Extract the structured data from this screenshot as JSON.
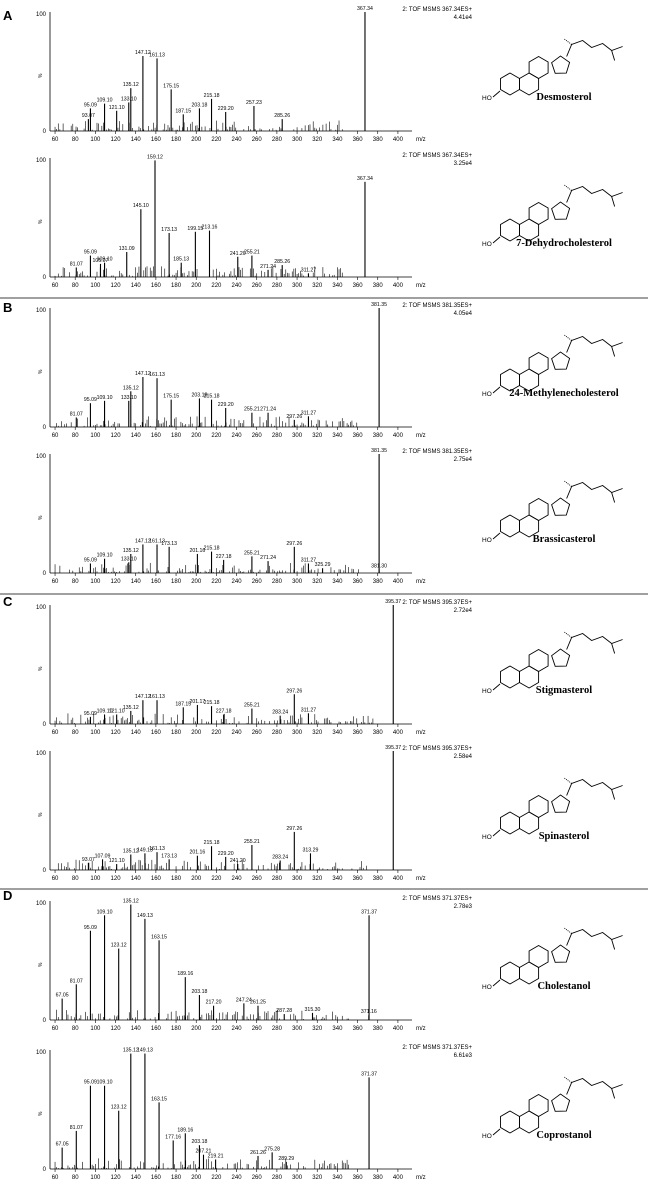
{
  "colors": {
    "ink": "#000000",
    "background": "#ffffff"
  },
  "panels": [
    {
      "letter": "A"
    },
    {
      "letter": "B"
    },
    {
      "letter": "C"
    },
    {
      "letter": "D"
    }
  ],
  "chart_data": [
    {
      "type": "bar",
      "panel": "A",
      "compound": "Desmosterol",
      "header": "2: TOF MSMS 367.34ES+",
      "intensity": "4.41e4",
      "xlabel": "m/z",
      "ylabel": "%",
      "xlim": [
        55,
        410
      ],
      "ylim": [
        0,
        100
      ],
      "xticks": [
        60,
        80,
        100,
        120,
        140,
        160,
        180,
        200,
        220,
        240,
        260,
        280,
        300,
        320,
        340,
        360,
        380,
        400
      ],
      "yticks": [
        0,
        100
      ],
      "peaks": [
        {
          "mz": 93.07,
          "rel": 10,
          "label": "93.07"
        },
        {
          "mz": 95.09,
          "rel": 19,
          "label": "95.09"
        },
        {
          "mz": 109.1,
          "rel": 23,
          "label": "109.10"
        },
        {
          "mz": 121.1,
          "rel": 17,
          "label": "121.10"
        },
        {
          "mz": 133.1,
          "rel": 24,
          "label": "133.10"
        },
        {
          "mz": 135.12,
          "rel": 36,
          "label": "135.12"
        },
        {
          "mz": 147.12,
          "rel": 63,
          "label": "147.12"
        },
        {
          "mz": 161.13,
          "rel": 61,
          "label": "161.13"
        },
        {
          "mz": 175.15,
          "rel": 35,
          "label": "175.15"
        },
        {
          "mz": 187.15,
          "rel": 14,
          "label": "187.15"
        },
        {
          "mz": 203.18,
          "rel": 19,
          "label": "203.18"
        },
        {
          "mz": 215.18,
          "rel": 27,
          "label": "215.18"
        },
        {
          "mz": 229.2,
          "rel": 16,
          "label": "229.20"
        },
        {
          "mz": 257.23,
          "rel": 21,
          "label": "257.23"
        },
        {
          "mz": 285.26,
          "rel": 10,
          "label": "285.26"
        },
        {
          "mz": 367.34,
          "rel": 100,
          "label": "367.34"
        }
      ]
    },
    {
      "type": "bar",
      "panel": "A",
      "compound": "7-Dehydrocholesterol",
      "header": "2: TOF MSMS 367.34ES+",
      "intensity": "3.25e4",
      "xlabel": "m/z",
      "ylabel": "%",
      "xlim": [
        55,
        410
      ],
      "ylim": [
        0,
        100
      ],
      "xticks": [
        60,
        80,
        100,
        120,
        140,
        160,
        180,
        200,
        220,
        240,
        260,
        280,
        300,
        320,
        340,
        360,
        380,
        400
      ],
      "yticks": [
        0,
        100
      ],
      "peaks": [
        {
          "mz": 81.07,
          "rel": 8,
          "label": "81.07"
        },
        {
          "mz": 95.09,
          "rel": 18,
          "label": "95.09"
        },
        {
          "mz": 105.07,
          "rel": 11,
          "label": "105.07"
        },
        {
          "mz": 109.1,
          "rel": 12,
          "label": "109.10"
        },
        {
          "mz": 131.09,
          "rel": 21,
          "label": "131.09"
        },
        {
          "mz": 145.1,
          "rel": 57,
          "label": "145.10"
        },
        {
          "mz": 159.12,
          "rel": 98,
          "label": "159.12"
        },
        {
          "mz": 173.13,
          "rel": 37,
          "label": "173.13"
        },
        {
          "mz": 185.13,
          "rel": 12,
          "label": "185.13"
        },
        {
          "mz": 199.15,
          "rel": 38,
          "label": "199.15"
        },
        {
          "mz": 213.16,
          "rel": 39,
          "label": "213.16"
        },
        {
          "mz": 241.2,
          "rel": 17,
          "label": "241.20"
        },
        {
          "mz": 255.21,
          "rel": 18,
          "label": "255.21"
        },
        {
          "mz": 271.24,
          "rel": 6,
          "label": "271.24"
        },
        {
          "mz": 285.26,
          "rel": 10,
          "label": "285.26"
        },
        {
          "mz": 311.27,
          "rel": 3,
          "label": "311.27"
        },
        {
          "mz": 367.34,
          "rel": 80,
          "label": "367.34"
        }
      ]
    },
    {
      "type": "bar",
      "panel": "B",
      "compound": "24-Methylenecholesterol",
      "header": "2: TOF MSMS 381.35ES+",
      "intensity": "4.05e4",
      "xlabel": "m/z",
      "ylabel": "%",
      "xlim": [
        55,
        410
      ],
      "ylim": [
        0,
        100
      ],
      "xticks": [
        60,
        80,
        100,
        120,
        140,
        160,
        180,
        200,
        220,
        240,
        260,
        280,
        300,
        320,
        340,
        360,
        380,
        400
      ],
      "yticks": [
        0,
        100
      ],
      "peaks": [
        {
          "mz": 81.07,
          "rel": 8,
          "label": "81.07"
        },
        {
          "mz": 95.09,
          "rel": 20,
          "label": "95.09"
        },
        {
          "mz": 109.1,
          "rel": 22,
          "label": "109.10"
        },
        {
          "mz": 133.1,
          "rel": 22,
          "label": "133.10"
        },
        {
          "mz": 135.12,
          "rel": 30,
          "label": "135.12"
        },
        {
          "mz": 147.12,
          "rel": 42,
          "label": "147.12"
        },
        {
          "mz": 161.13,
          "rel": 41,
          "label": "161.13"
        },
        {
          "mz": 175.15,
          "rel": 23,
          "label": "175.15"
        },
        {
          "mz": 203.18,
          "rel": 24,
          "label": "203.18"
        },
        {
          "mz": 215.18,
          "rel": 23,
          "label": "215.18"
        },
        {
          "mz": 229.2,
          "rel": 16,
          "label": "229.20"
        },
        {
          "mz": 255.21,
          "rel": 12,
          "label": "255.21"
        },
        {
          "mz": 271.24,
          "rel": 12,
          "label": "271.24"
        },
        {
          "mz": 297.26,
          "rel": 6,
          "label": "297.26"
        },
        {
          "mz": 311.27,
          "rel": 9,
          "label": "311.27"
        },
        {
          "mz": 381.35,
          "rel": 100,
          "label": "381.35"
        }
      ]
    },
    {
      "type": "bar",
      "panel": "B",
      "compound": "Brassicasterol",
      "header": "2: TOF MSMS 381.35ES+",
      "intensity": "2.75e4",
      "xlabel": "m/z",
      "ylabel": "%",
      "xlim": [
        55,
        410
      ],
      "ylim": [
        0,
        100
      ],
      "xticks": [
        60,
        80,
        100,
        120,
        140,
        160,
        180,
        200,
        220,
        240,
        260,
        280,
        300,
        320,
        340,
        360,
        380,
        400
      ],
      "yticks": [
        0,
        100
      ],
      "peaks": [
        {
          "mz": 95.09,
          "rel": 8,
          "label": "95.09"
        },
        {
          "mz": 109.1,
          "rel": 12,
          "label": "109.10"
        },
        {
          "mz": 133.1,
          "rel": 9,
          "label": "133.10"
        },
        {
          "mz": 135.12,
          "rel": 16,
          "label": "135.12"
        },
        {
          "mz": 147.12,
          "rel": 24,
          "label": "147.12"
        },
        {
          "mz": 161.13,
          "rel": 24,
          "label": "161.13"
        },
        {
          "mz": 173.13,
          "rel": 22,
          "label": "173.13"
        },
        {
          "mz": 201.16,
          "rel": 16,
          "label": "201.16"
        },
        {
          "mz": 215.18,
          "rel": 18,
          "label": "215.18"
        },
        {
          "mz": 227.18,
          "rel": 11,
          "label": "227.18"
        },
        {
          "mz": 255.21,
          "rel": 14,
          "label": "255.21"
        },
        {
          "mz": 271.24,
          "rel": 10,
          "label": "271.24"
        },
        {
          "mz": 297.26,
          "rel": 22,
          "label": "297.26"
        },
        {
          "mz": 311.27,
          "rel": 8,
          "label": "311.27"
        },
        {
          "mz": 325.29,
          "rel": 4,
          "label": "325.29"
        },
        {
          "mz": 381.3,
          "rel": 3,
          "label": "381.30"
        },
        {
          "mz": 381.35,
          "rel": 100,
          "label": "381.35"
        }
      ]
    },
    {
      "type": "bar",
      "panel": "C",
      "compound": "Stigmasterol",
      "header": "2: TOF MSMS 395.37ES+",
      "intensity": "2.72e4",
      "xlabel": "m/z",
      "ylabel": "%",
      "xlim": [
        55,
        410
      ],
      "ylim": [
        0,
        100
      ],
      "xticks": [
        60,
        80,
        100,
        120,
        140,
        160,
        180,
        200,
        220,
        240,
        260,
        280,
        300,
        320,
        340,
        360,
        380,
        400
      ],
      "yticks": [
        0,
        100
      ],
      "peaks": [
        {
          "mz": 95.09,
          "rel": 6,
          "label": "95.09"
        },
        {
          "mz": 109.1,
          "rel": 8,
          "label": "109.10"
        },
        {
          "mz": 121.1,
          "rel": 8,
          "label": "121.10"
        },
        {
          "mz": 135.12,
          "rel": 11,
          "label": "135.12"
        },
        {
          "mz": 147.12,
          "rel": 20,
          "label": "147.12"
        },
        {
          "mz": 161.13,
          "rel": 20,
          "label": "161.13"
        },
        {
          "mz": 187.15,
          "rel": 14,
          "label": "187.15"
        },
        {
          "mz": 201.17,
          "rel": 16,
          "label": "201.17"
        },
        {
          "mz": 215.18,
          "rel": 15,
          "label": "215.18"
        },
        {
          "mz": 227.18,
          "rel": 8,
          "label": "227.18"
        },
        {
          "mz": 255.21,
          "rel": 13,
          "label": "255.21"
        },
        {
          "mz": 283.24,
          "rel": 7,
          "label": "283.24"
        },
        {
          "mz": 297.26,
          "rel": 25,
          "label": "297.26"
        },
        {
          "mz": 311.27,
          "rel": 9,
          "label": "311.27"
        },
        {
          "mz": 395.37,
          "rel": 100,
          "label": "395.37"
        }
      ]
    },
    {
      "type": "bar",
      "panel": "C",
      "compound": "Spinasterol",
      "header": "2: TOF MSMS 395.37ES+",
      "intensity": "2.58e4",
      "xlabel": "m/z",
      "ylabel": "%",
      "xlim": [
        55,
        410
      ],
      "ylim": [
        0,
        100
      ],
      "xticks": [
        60,
        80,
        100,
        120,
        140,
        160,
        180,
        200,
        220,
        240,
        260,
        280,
        300,
        320,
        340,
        360,
        380,
        400
      ],
      "yticks": [
        0,
        100
      ],
      "peaks": [
        {
          "mz": 93.07,
          "rel": 6,
          "label": "93.07"
        },
        {
          "mz": 107.09,
          "rel": 9,
          "label": "107.09"
        },
        {
          "mz": 121.1,
          "rel": 5,
          "label": "121.10"
        },
        {
          "mz": 135.12,
          "rel": 13,
          "label": "135.12"
        },
        {
          "mz": 149.13,
          "rel": 14,
          "label": "149.13"
        },
        {
          "mz": 161.13,
          "rel": 15,
          "label": "161.13"
        },
        {
          "mz": 173.13,
          "rel": 9,
          "label": "173.13"
        },
        {
          "mz": 201.16,
          "rel": 12,
          "label": "201.16"
        },
        {
          "mz": 215.18,
          "rel": 20,
          "label": "215.18"
        },
        {
          "mz": 229.2,
          "rel": 11,
          "label": "229.20"
        },
        {
          "mz": 241.2,
          "rel": 5,
          "label": "241.20"
        },
        {
          "mz": 255.21,
          "rel": 21,
          "label": "255.21"
        },
        {
          "mz": 283.24,
          "rel": 8,
          "label": "283.24"
        },
        {
          "mz": 297.26,
          "rel": 32,
          "label": "297.26"
        },
        {
          "mz": 313.29,
          "rel": 14,
          "label": "313.29"
        },
        {
          "mz": 395.37,
          "rel": 100,
          "label": "395.37"
        }
      ]
    },
    {
      "type": "bar",
      "panel": "D",
      "compound": "Cholestanol",
      "header": "2: TOF MSMS 371.37ES+",
      "intensity": "2.78e3",
      "xlabel": "m/z",
      "ylabel": "%",
      "xlim": [
        55,
        410
      ],
      "ylim": [
        0,
        100
      ],
      "xticks": [
        60,
        80,
        100,
        120,
        140,
        160,
        180,
        200,
        220,
        240,
        260,
        280,
        300,
        320,
        340,
        360,
        380,
        400
      ],
      "yticks": [
        0,
        100
      ],
      "peaks": [
        {
          "mz": 67.05,
          "rel": 18,
          "label": "67.05"
        },
        {
          "mz": 81.07,
          "rel": 30,
          "label": "81.07"
        },
        {
          "mz": 95.09,
          "rel": 75,
          "label": "95.09"
        },
        {
          "mz": 109.1,
          "rel": 88,
          "label": "109.10"
        },
        {
          "mz": 123.12,
          "rel": 60,
          "label": "123.12"
        },
        {
          "mz": 135.12,
          "rel": 97,
          "label": "135.12"
        },
        {
          "mz": 149.13,
          "rel": 85,
          "label": "149.13"
        },
        {
          "mz": 163.15,
          "rel": 67,
          "label": "163.15"
        },
        {
          "mz": 189.16,
          "rel": 36,
          "label": "189.16"
        },
        {
          "mz": 203.18,
          "rel": 21,
          "label": "203.18"
        },
        {
          "mz": 217.2,
          "rel": 12,
          "label": "217.20"
        },
        {
          "mz": 247.24,
          "rel": 14,
          "label": "247.24"
        },
        {
          "mz": 261.25,
          "rel": 12,
          "label": "261.25"
        },
        {
          "mz": 287.28,
          "rel": 5,
          "label": "287.28"
        },
        {
          "mz": 315.3,
          "rel": 6,
          "label": "315.30"
        },
        {
          "mz": 371.16,
          "rel": 4,
          "label": "371.16"
        },
        {
          "mz": 371.37,
          "rel": 88,
          "label": "371.37"
        }
      ]
    },
    {
      "type": "bar",
      "panel": "D",
      "compound": "Coprostanol",
      "header": "2: TOF MSMS 371.37ES+",
      "intensity": "6.61e3",
      "xlabel": "m/z",
      "ylabel": "%",
      "xlim": [
        55,
        410
      ],
      "ylim": [
        0,
        100
      ],
      "xticks": [
        60,
        80,
        100,
        120,
        140,
        160,
        180,
        200,
        220,
        240,
        260,
        280,
        300,
        320,
        340,
        360,
        380,
        400
      ],
      "yticks": [
        0,
        100
      ],
      "peaks": [
        {
          "mz": 67.05,
          "rel": 18,
          "label": "67.05"
        },
        {
          "mz": 81.07,
          "rel": 32,
          "label": "81.07"
        },
        {
          "mz": 95.09,
          "rel": 70,
          "label": "95.09"
        },
        {
          "mz": 109.1,
          "rel": 70,
          "label": "109.10"
        },
        {
          "mz": 123.12,
          "rel": 49,
          "label": "123.12"
        },
        {
          "mz": 135.12,
          "rel": 97,
          "label": "135.12"
        },
        {
          "mz": 149.13,
          "rel": 97,
          "label": "149.13"
        },
        {
          "mz": 163.15,
          "rel": 56,
          "label": "163.15"
        },
        {
          "mz": 177.16,
          "rel": 24,
          "label": "177.16"
        },
        {
          "mz": 189.16,
          "rel": 30,
          "label": "189.16"
        },
        {
          "mz": 203.18,
          "rel": 20,
          "label": "203.18"
        },
        {
          "mz": 207.21,
          "rel": 12,
          "label": "207.21"
        },
        {
          "mz": 219.21,
          "rel": 8,
          "label": "219.21"
        },
        {
          "mz": 261.26,
          "rel": 11,
          "label": "261.26"
        },
        {
          "mz": 275.28,
          "rel": 14,
          "label": "275.28"
        },
        {
          "mz": 289.29,
          "rel": 6,
          "label": "289.29"
        },
        {
          "mz": 371.37,
          "rel": 77,
          "label": "371.37"
        }
      ]
    }
  ]
}
